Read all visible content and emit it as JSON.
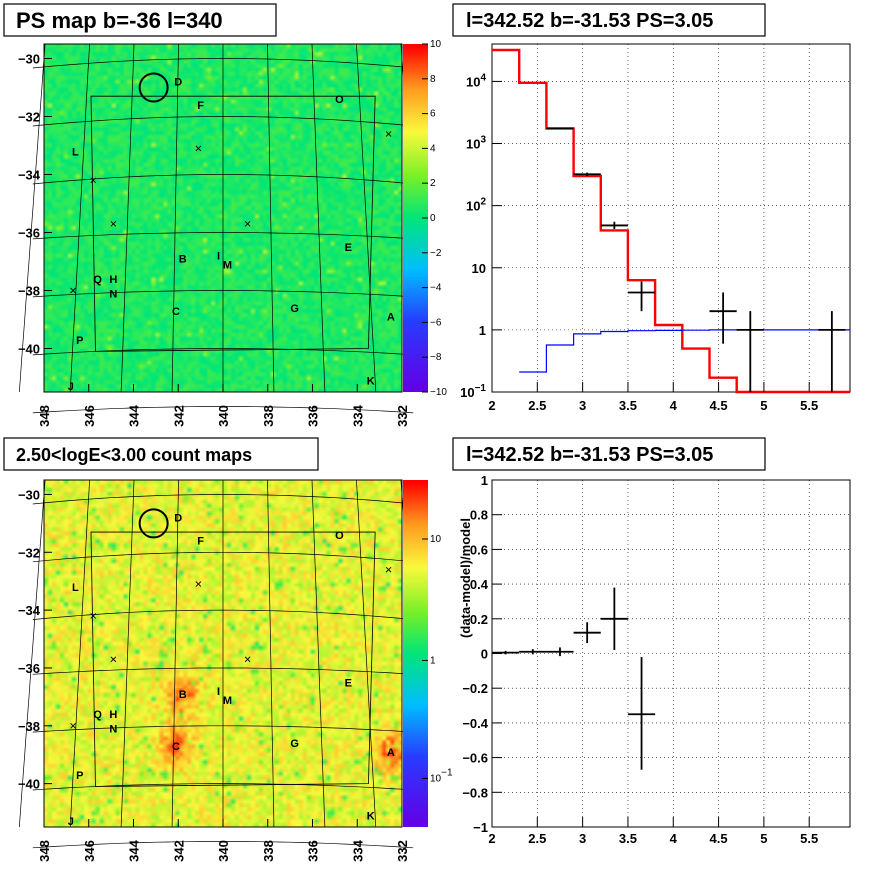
{
  "chart_data": [
    {
      "type": "heatmap",
      "title": "PS map b=-36 l=340",
      "x_ticks": [
        "348",
        "346",
        "344",
        "342",
        "340",
        "338",
        "336",
        "334",
        "332"
      ],
      "y_ticks": [
        "-30",
        "-32",
        "-34",
        "-36",
        "-38",
        "-40"
      ],
      "xlim": [
        348,
        332
      ],
      "ylim": [
        -41.5,
        -29.5
      ],
      "z_scale": "linear",
      "zlim": [
        -10,
        10
      ],
      "z_ticks": [
        "10",
        "8",
        "6",
        "4",
        "2",
        "0",
        "-2",
        "-4",
        "-6",
        "-8",
        "-10"
      ],
      "sources": [
        {
          "label": "D",
          "l": 342.0,
          "b": -30.8
        },
        {
          "label": "F",
          "l": 341.0,
          "b": -31.6
        },
        {
          "label": "O",
          "l": 334.8,
          "b": -31.4
        },
        {
          "label": "L",
          "l": 346.6,
          "b": -33.2
        },
        {
          "label": "E",
          "l": 334.4,
          "b": -36.5
        },
        {
          "label": "B",
          "l": 341.8,
          "b": -36.9
        },
        {
          "label": "I",
          "l": 340.2,
          "b": -36.8
        },
        {
          "label": "M",
          "l": 339.8,
          "b": -37.1
        },
        {
          "label": "Q",
          "l": 345.6,
          "b": -37.6
        },
        {
          "label": "H",
          "l": 344.9,
          "b": -37.6
        },
        {
          "label": "N",
          "l": 344.9,
          "b": -38.1
        },
        {
          "label": "C",
          "l": 342.1,
          "b": -38.7
        },
        {
          "label": "G",
          "l": 336.8,
          "b": -38.6
        },
        {
          "label": "A",
          "l": 332.5,
          "b": -38.9
        },
        {
          "label": "P",
          "l": 346.4,
          "b": -39.7
        },
        {
          "label": "K",
          "l": 333.4,
          "b": -41.1
        },
        {
          "label": "J",
          "l": 346.8,
          "b": -41.3
        }
      ],
      "crosses": [
        {
          "l": 341.1,
          "b": -33.1
        },
        {
          "l": 345.8,
          "b": -34.2
        },
        {
          "l": 344.9,
          "b": -35.7
        },
        {
          "l": 338.9,
          "b": -35.7
        },
        {
          "l": 346.7,
          "b": -38.0
        },
        {
          "l": 332.6,
          "b": -32.6
        }
      ],
      "circle": {
        "l": 343.1,
        "b": -31.0
      }
    },
    {
      "type": "line",
      "title": "l=342.52 b=-31.53 PS=3.05",
      "xlim": [
        2,
        5.95
      ],
      "ylim": [
        0.1,
        40000
      ],
      "y_scale": "log",
      "x_ticks": [
        "2",
        "2.5",
        "3",
        "3.5",
        "4",
        "4.5",
        "5",
        "5.5"
      ],
      "y_ticks": [
        "10^-1",
        "1",
        "10",
        "10^2",
        "10^3",
        "10^4"
      ],
      "series": [
        {
          "color": "#ff0000",
          "kind": "step",
          "edges": [
            2.0,
            2.3,
            2.6,
            2.9,
            3.2,
            3.5,
            3.8,
            4.1,
            4.4,
            4.7,
            5.0,
            5.3,
            5.6,
            5.95
          ],
          "values": [
            32000,
            9500,
            1750,
            300,
            40,
            6.3,
            1.2,
            0.5,
            0.17,
            0.1,
            0.1,
            0.1,
            0.1
          ]
        },
        {
          "color": "#0000ff",
          "kind": "step",
          "edges": [
            2.3,
            2.6,
            2.9,
            3.2,
            3.5,
            3.8,
            4.1,
            4.4,
            4.7,
            5.0,
            5.3,
            5.6,
            5.95
          ],
          "values": [
            0.21,
            0.57,
            0.86,
            0.94,
            0.97,
            0.98,
            0.99,
            1.0,
            1.0,
            1.0,
            1.0,
            1.0
          ]
        },
        {
          "color": "#000000",
          "kind": "errorbars",
          "points": [
            {
              "x": 2.75,
              "xerr": 0.15,
              "y": 1750,
              "ylo": 1700,
              "yhi": 1800
            },
            {
              "x": 3.05,
              "xerr": 0.15,
              "y": 320,
              "ylo": 300,
              "yhi": 340
            },
            {
              "x": 3.35,
              "xerr": 0.15,
              "y": 48,
              "ylo": 42,
              "yhi": 55
            },
            {
              "x": 3.65,
              "xerr": 0.15,
              "y": 4,
              "ylo": 2,
              "yhi": 6
            },
            {
              "x": 4.55,
              "xerr": 0.15,
              "y": 2,
              "ylo": 0.6,
              "yhi": 4
            },
            {
              "x": 4.85,
              "xerr": 0.15,
              "y": 1,
              "ylo": 0.1,
              "yhi": 2
            },
            {
              "x": 5.75,
              "xerr": 0.15,
              "y": 1,
              "ylo": 0.1,
              "yhi": 2
            }
          ]
        }
      ]
    },
    {
      "type": "heatmap",
      "title": "2.50<logE<3.00 count maps",
      "x_ticks": [
        "348",
        "346",
        "344",
        "342",
        "340",
        "338",
        "336",
        "334",
        "332"
      ],
      "y_ticks": [
        "-30",
        "-32",
        "-34",
        "-36",
        "-38",
        "-40"
      ],
      "xlim": [
        348,
        332
      ],
      "ylim": [
        -41.5,
        -29.5
      ],
      "z_scale": "log",
      "z_ticks": [
        "10",
        "1",
        "10^-1"
      ],
      "hot_spots": [
        "B",
        "C",
        "A"
      ]
    },
    {
      "type": "scatter",
      "title": "l=342.52 b=-31.53 PS=3.05",
      "ylabel": "(data-model)/model",
      "xlim": [
        2,
        5.95
      ],
      "ylim": [
        -1,
        1
      ],
      "x_ticks": [
        "2",
        "2.5",
        "3",
        "3.5",
        "4",
        "4.5",
        "5",
        "5.5"
      ],
      "y_ticks": [
        "1",
        "0.8",
        "0.6",
        "0.4",
        "0.2",
        "0",
        "-0.2",
        "-0.4",
        "-0.6",
        "-0.8",
        "-1"
      ],
      "points": [
        {
          "x": 2.15,
          "xerr": 0.15,
          "y": 0.005,
          "ylo": -0.005,
          "yhi": 0.015
        },
        {
          "x": 2.45,
          "xerr": 0.15,
          "y": 0.01,
          "ylo": -0.005,
          "yhi": 0.025
        },
        {
          "x": 2.75,
          "xerr": 0.15,
          "y": 0.01,
          "ylo": -0.015,
          "yhi": 0.035
        },
        {
          "x": 3.05,
          "xerr": 0.15,
          "y": 0.12,
          "ylo": 0.06,
          "yhi": 0.18
        },
        {
          "x": 3.35,
          "xerr": 0.15,
          "y": 0.2,
          "ylo": 0.02,
          "yhi": 0.38
        },
        {
          "x": 3.65,
          "xerr": 0.15,
          "y": -0.35,
          "ylo": -0.67,
          "yhi": -0.02
        }
      ]
    }
  ]
}
